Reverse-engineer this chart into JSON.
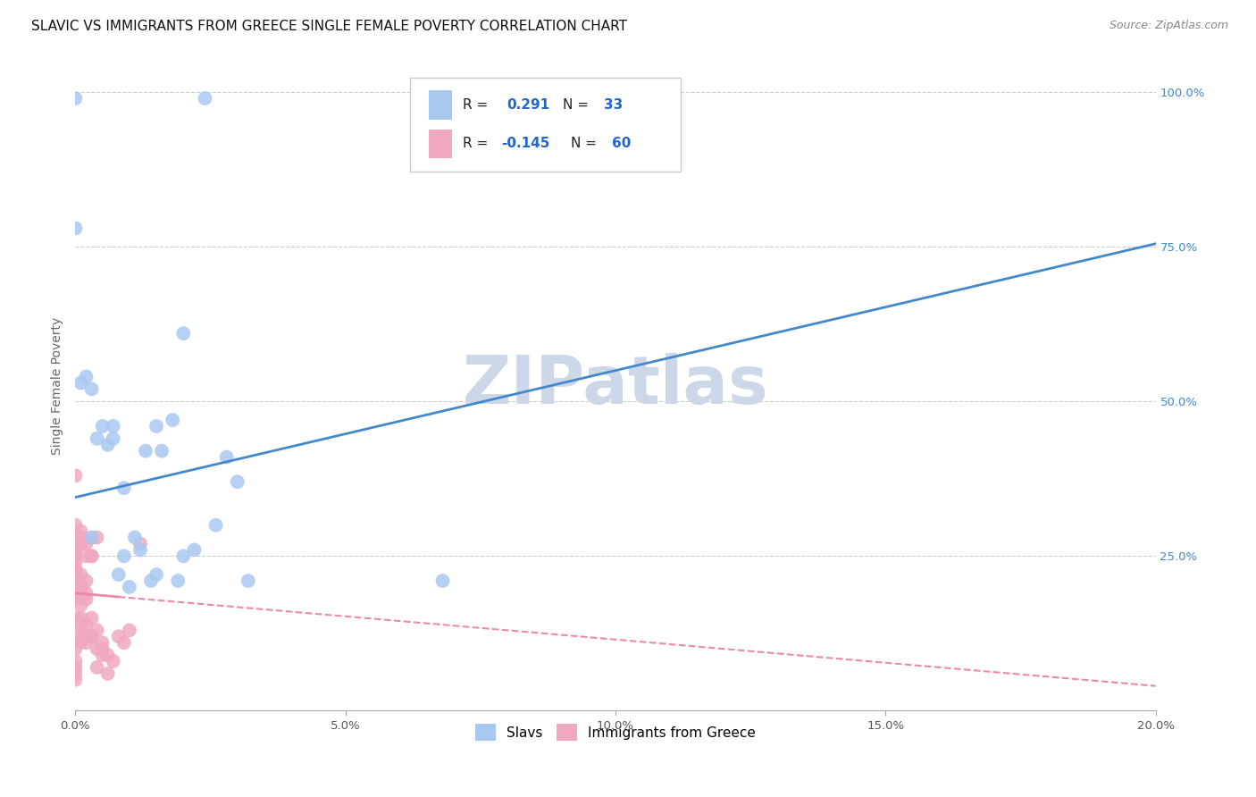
{
  "title": "SLAVIC VS IMMIGRANTS FROM GREECE SINGLE FEMALE POVERTY CORRELATION CHART",
  "source": "Source: ZipAtlas.com",
  "ylabel": "Single Female Poverty",
  "legend1_R": "0.291",
  "legend1_N": "33",
  "legend2_R": "-0.145",
  "legend2_N": "60",
  "legend1_label": "Slavs",
  "legend2_label": "Immigrants from Greece",
  "watermark": "ZIPatlas",
  "slavs_x": [
    0.002,
    0.003,
    0.004,
    0.006,
    0.007,
    0.008,
    0.009,
    0.01,
    0.011,
    0.012,
    0.013,
    0.014,
    0.015,
    0.016,
    0.018,
    0.019,
    0.02,
    0.022,
    0.024,
    0.026,
    0.028,
    0.03,
    0.032,
    0.001,
    0.003,
    0.005,
    0.007,
    0.009,
    0.015,
    0.02,
    0.068,
    0.0,
    0.0
  ],
  "slavs_y": [
    0.54,
    0.52,
    0.44,
    0.43,
    0.46,
    0.22,
    0.25,
    0.2,
    0.28,
    0.26,
    0.42,
    0.21,
    0.22,
    0.42,
    0.47,
    0.21,
    0.25,
    0.26,
    0.99,
    0.3,
    0.41,
    0.37,
    0.21,
    0.53,
    0.28,
    0.46,
    0.44,
    0.36,
    0.46,
    0.61,
    0.21,
    0.99,
    0.78
  ],
  "greece_x": [
    0.0,
    0.0,
    0.0,
    0.0,
    0.0,
    0.0,
    0.0,
    0.0,
    0.0,
    0.0,
    0.0,
    0.0,
    0.0,
    0.0,
    0.0,
    0.0,
    0.0,
    0.0,
    0.0,
    0.0,
    0.001,
    0.001,
    0.001,
    0.001,
    0.001,
    0.001,
    0.001,
    0.001,
    0.001,
    0.001,
    0.001,
    0.001,
    0.001,
    0.002,
    0.002,
    0.002,
    0.002,
    0.002,
    0.002,
    0.002,
    0.003,
    0.003,
    0.003,
    0.003,
    0.003,
    0.003,
    0.004,
    0.004,
    0.004,
    0.004,
    0.005,
    0.005,
    0.005,
    0.006,
    0.006,
    0.007,
    0.008,
    0.009,
    0.01,
    0.012
  ],
  "greece_y": [
    0.2,
    0.22,
    0.25,
    0.2,
    0.3,
    0.24,
    0.21,
    0.18,
    0.06,
    0.05,
    0.07,
    0.1,
    0.23,
    0.08,
    0.15,
    0.19,
    0.22,
    0.26,
    0.25,
    0.38,
    0.22,
    0.14,
    0.2,
    0.27,
    0.27,
    0.17,
    0.13,
    0.12,
    0.2,
    0.11,
    0.28,
    0.29,
    0.15,
    0.14,
    0.18,
    0.19,
    0.27,
    0.11,
    0.21,
    0.25,
    0.15,
    0.25,
    0.25,
    0.28,
    0.12,
    0.12,
    0.13,
    0.28,
    0.1,
    0.07,
    0.1,
    0.09,
    0.11,
    0.09,
    0.06,
    0.08,
    0.12,
    0.11,
    0.13,
    0.27
  ],
  "slavs_color": "#a8c8f0",
  "greece_color": "#f0a8c0",
  "slavs_line_color": "#4488cc",
  "greece_line_color": "#ee88aa",
  "background_color": "#ffffff",
  "grid_color": "#cccccc",
  "title_fontsize": 11,
  "source_fontsize": 9,
  "watermark_color": "#ccd8e8",
  "xmin": 0.0,
  "xmax": 0.2,
  "ymin": 0.0,
  "ymax": 1.05,
  "slavs_line_y0": 0.345,
  "slavs_line_y1": 0.755,
  "greece_line_y0": 0.19,
  "greece_line_y1": 0.04
}
